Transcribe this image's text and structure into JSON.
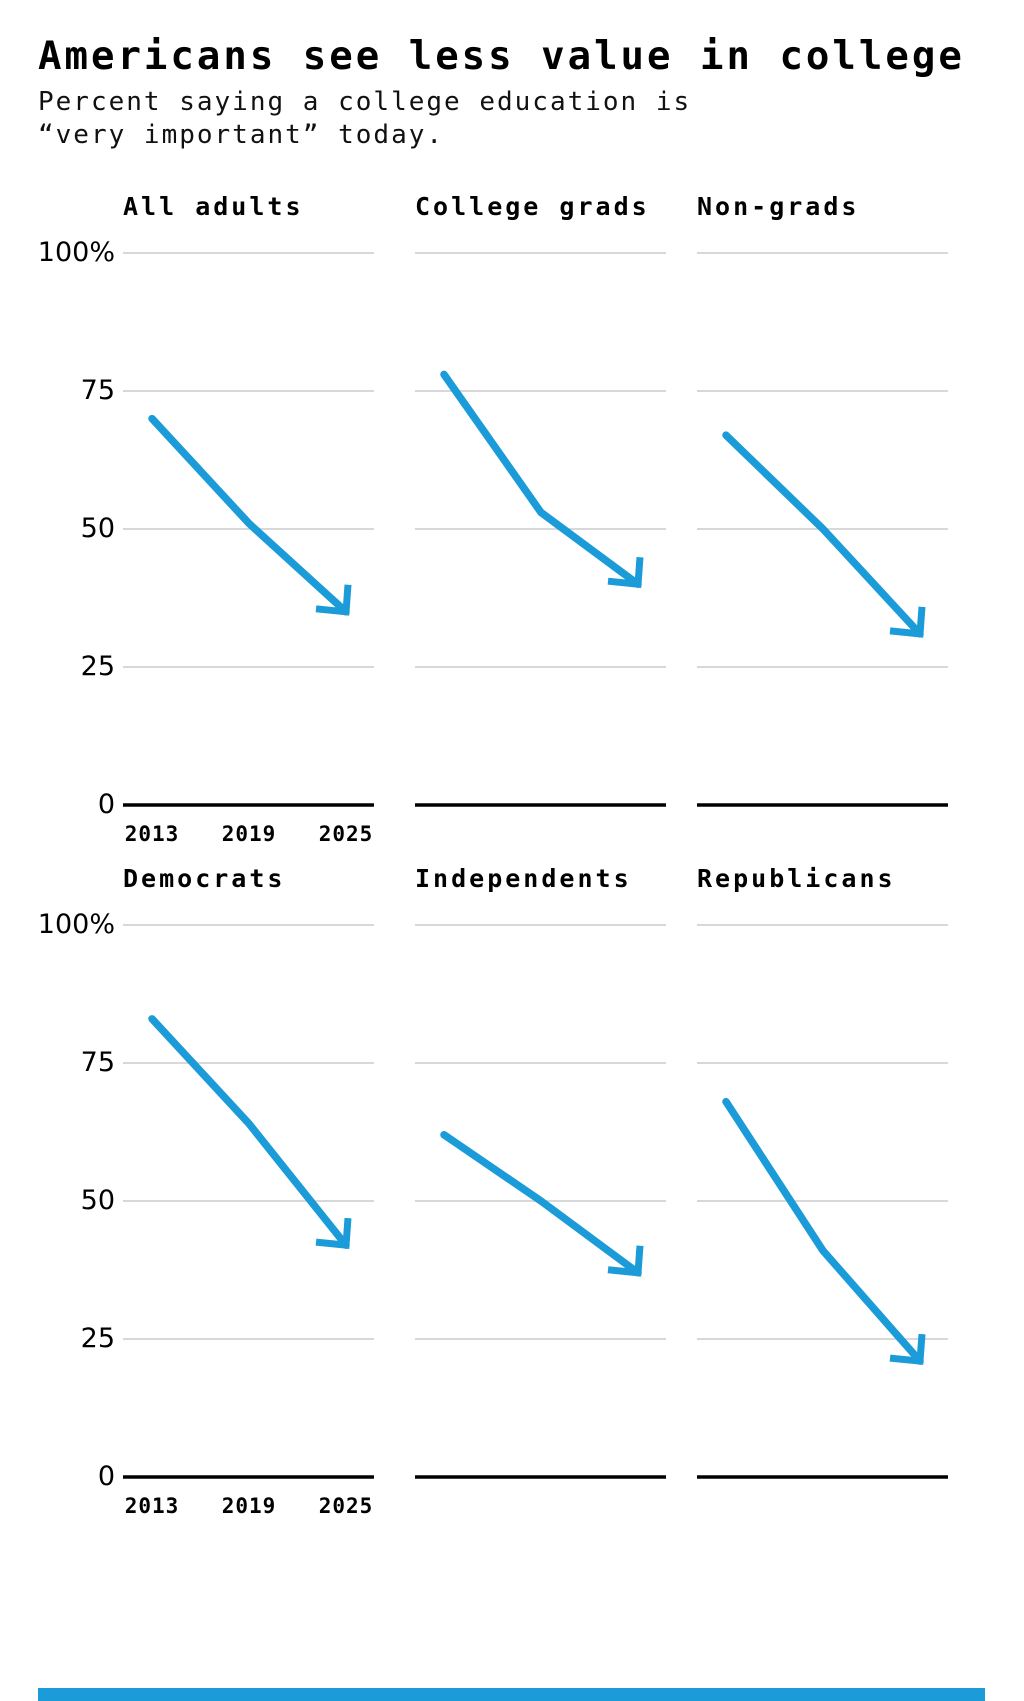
{
  "page": {
    "title": "Americans see less value in college",
    "subtitle": "Percent saying a college education is\n“very important” today.",
    "accent_color": "#1b9cd8"
  },
  "chart_data": {
    "type": "line",
    "title": "Americans see less value in college",
    "subtitle": "Percent saying a college education is “very important” today.",
    "categories": [
      2013,
      2019,
      2025
    ],
    "x_tick_labels": [
      "2013",
      "2019",
      "2025"
    ],
    "y_axis_labels": [
      "100%",
      "75",
      "50",
      "25",
      "0"
    ],
    "ylim": [
      0,
      100
    ],
    "gridlines_at": [
      100,
      75,
      50,
      25,
      0
    ],
    "grid": true,
    "legend": "none",
    "line_color": "#1b9cd8",
    "axis_color": "#000000",
    "gridline_color": "#cccccc",
    "panels": [
      {
        "label": "All adults",
        "values": [
          70,
          51,
          35
        ]
      },
      {
        "label": "College grads",
        "values": [
          78,
          53,
          40
        ]
      },
      {
        "label": "Non-grads",
        "values": [
          67,
          50,
          31
        ]
      },
      {
        "label": "Democrats",
        "values": [
          83,
          64,
          42
        ]
      },
      {
        "label": "Independents",
        "values": [
          62,
          50,
          37
        ]
      },
      {
        "label": "Republicans",
        "values": [
          68,
          41,
          21
        ]
      }
    ]
  }
}
